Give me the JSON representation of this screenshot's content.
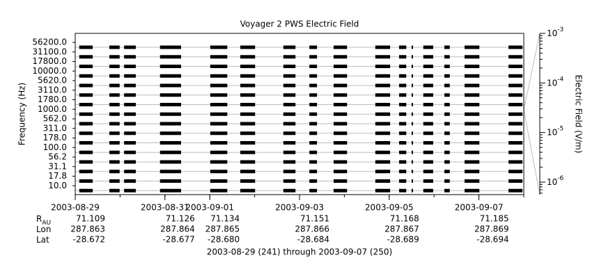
{
  "chart_data": {
    "type": "spectrogram",
    "title": "Voyager 2 PWS Electric Field",
    "ylabel": "Frequency (Hz)",
    "y2label": "Electric Field (V/m)",
    "xlabel": "2003-08-29 (241) through 2003-09-07 (250)",
    "categories": [
      "56200.0",
      "31100.0",
      "17800.0",
      "10000.0",
      "5620.0",
      "3110.0",
      "1780.0",
      "1000.0",
      "562.0",
      "311.0",
      "178.0",
      "100.0",
      "56.2",
      "31.1",
      "17.8",
      "10.0"
    ],
    "xlim": [
      0,
      10
    ],
    "xticks": [
      {
        "value": 0,
        "label": "2003-08-29"
      },
      {
        "value": 2,
        "label": "2003-08-31"
      },
      {
        "value": 3,
        "label": "2003-09-01"
      },
      {
        "value": 5,
        "label": "2003-09-03"
      },
      {
        "value": 7,
        "label": "2003-09-05"
      },
      {
        "value": 9,
        "label": "2003-09-07"
      }
    ],
    "segments": [
      [
        0.09,
        0.39
      ],
      [
        0.76,
        0.99
      ],
      [
        1.09,
        1.35
      ],
      [
        1.89,
        2.36
      ],
      [
        3.01,
        3.39
      ],
      [
        3.68,
        4.01
      ],
      [
        4.64,
        4.91
      ],
      [
        5.22,
        5.39
      ],
      [
        5.76,
        6.06
      ],
      [
        6.69,
        7.02
      ],
      [
        7.22,
        7.38
      ],
      [
        7.5,
        7.53
      ],
      [
        7.76,
        7.98
      ],
      [
        8.23,
        8.35
      ],
      [
        8.68,
        9.01
      ],
      [
        9.66,
        9.97
      ]
    ],
    "color": "#000000",
    "y2lim": [
      5.6e-07,
      0.001
    ],
    "y2log": true,
    "y2ticks": [
      {
        "value": 0.001,
        "label": "10",
        "exponent": "-3"
      },
      {
        "value": 0.0001,
        "label": "10",
        "exponent": "-4"
      },
      {
        "value": 1e-05,
        "label": "10",
        "exponent": "-5"
      },
      {
        "value": 1e-06,
        "label": "10",
        "exponent": "-6"
      }
    ],
    "ephemeris": [
      {
        "label": "R",
        "subscript": "AU",
        "values": [
          "71.109",
          "71.126",
          "71.134",
          "71.151",
          "71.168",
          "71.185"
        ]
      },
      {
        "label": "Lon",
        "values": [
          "287.863",
          "287.864",
          "287.865",
          "287.866",
          "287.867",
          "287.869"
        ]
      },
      {
        "label": "Lat",
        "values": [
          "-28.672",
          "-28.677",
          "-28.680",
          "-28.684",
          "-28.689",
          "-28.694"
        ]
      }
    ]
  }
}
